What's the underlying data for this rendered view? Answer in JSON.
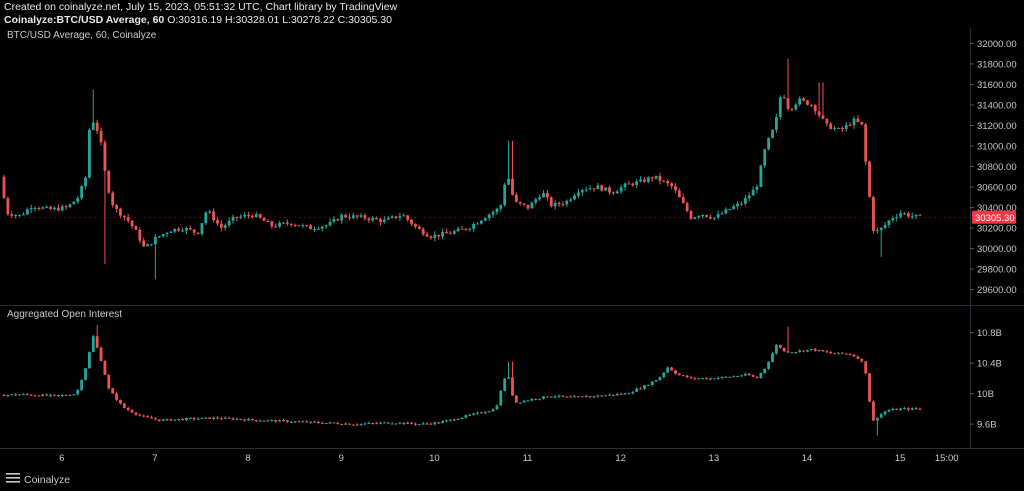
{
  "header": {
    "line1": "Created on coinalyze.net, July 15, 2023, 05:51:32 UTC, Chart library by TradingView",
    "symbol": "Coinalyze:BTC/USD Average, 60",
    "ohlc": " O:30316.19 H:30328.01 L:30278.22 C:30305.30"
  },
  "brand": {
    "name": "Coinalyze",
    "icon": "menu-lines-icon"
  },
  "colors": {
    "up": "#26a69a",
    "down": "#ef5350",
    "background": "#000000",
    "label_bg": "#f23645",
    "axis_text": "#c8c8c8",
    "separator": "#2a2e39"
  },
  "chart_data": [
    {
      "type": "candlestick",
      "title": "BTC/USD Average, 60, Coinalyze",
      "ylim": [
        29450,
        32150
      ],
      "yticks": [
        "29600.00",
        "29800.00",
        "30000.00",
        "30200.00",
        "30400.00",
        "30600.00",
        "30800.00",
        "31000.00",
        "31200.00",
        "31400.00",
        "31600.00",
        "31800.00",
        "32000.00"
      ],
      "last_price_label": "30305.30",
      "last_price": 30305.3,
      "x_labels": [
        "6",
        "7",
        "8",
        "9",
        "10",
        "11",
        "12",
        "13",
        "14",
        "15",
        "15:00"
      ],
      "x_label_day_positions": [
        6,
        7,
        8,
        9,
        10,
        11,
        12,
        13,
        14,
        15,
        15.5
      ],
      "x_range": [
        5.38,
        15.75
      ],
      "anchors": [
        [
          5.38,
          30700
        ],
        [
          5.45,
          30350
        ],
        [
          5.6,
          30320
        ],
        [
          5.72,
          30420
        ],
        [
          5.9,
          30380
        ],
        [
          6.1,
          30400
        ],
        [
          6.22,
          30500
        ],
        [
          6.3,
          30700
        ],
        [
          6.35,
          31300
        ],
        [
          6.45,
          31100
        ],
        [
          6.52,
          30650
        ],
        [
          6.6,
          30400
        ],
        [
          6.75,
          30280
        ],
        [
          6.85,
          30150
        ],
        [
          6.93,
          30000
        ],
        [
          7.05,
          30100
        ],
        [
          7.2,
          30180
        ],
        [
          7.35,
          30200
        ],
        [
          7.5,
          30150
        ],
        [
          7.6,
          30380
        ],
        [
          7.75,
          30200
        ],
        [
          7.9,
          30300
        ],
        [
          8.1,
          30330
        ],
        [
          8.3,
          30220
        ],
        [
          8.5,
          30250
        ],
        [
          8.7,
          30200
        ],
        [
          8.9,
          30230
        ],
        [
          9.05,
          30320
        ],
        [
          9.3,
          30300
        ],
        [
          9.5,
          30270
        ],
        [
          9.7,
          30330
        ],
        [
          9.85,
          30200
        ],
        [
          10.0,
          30120
        ],
        [
          10.2,
          30150
        ],
        [
          10.4,
          30200
        ],
        [
          10.6,
          30320
        ],
        [
          10.75,
          30400
        ],
        [
          10.82,
          30750
        ],
        [
          10.9,
          30450
        ],
        [
          11.05,
          30400
        ],
        [
          11.2,
          30550
        ],
        [
          11.3,
          30420
        ],
        [
          11.45,
          30450
        ],
        [
          11.6,
          30580
        ],
        [
          11.8,
          30600
        ],
        [
          11.95,
          30550
        ],
        [
          12.1,
          30620
        ],
        [
          12.25,
          30650
        ],
        [
          12.4,
          30700
        ],
        [
          12.5,
          30650
        ],
        [
          12.6,
          30600
        ],
        [
          12.7,
          30450
        ],
        [
          12.8,
          30300
        ],
        [
          12.9,
          30340
        ],
        [
          13.05,
          30300
        ],
        [
          13.2,
          30380
        ],
        [
          13.35,
          30450
        ],
        [
          13.5,
          30600
        ],
        [
          13.6,
          31000
        ],
        [
          13.7,
          31200
        ],
        [
          13.77,
          31550
        ],
        [
          13.85,
          31350
        ],
        [
          13.95,
          31450
        ],
        [
          14.1,
          31400
        ],
        [
          14.25,
          31200
        ],
        [
          14.4,
          31150
        ],
        [
          14.55,
          31250
        ],
        [
          14.63,
          31200
        ],
        [
          14.7,
          30600
        ],
        [
          14.76,
          30150
        ],
        [
          14.85,
          30200
        ],
        [
          14.95,
          30300
        ],
        [
          15.05,
          30350
        ],
        [
          15.15,
          30320
        ],
        [
          15.25,
          30305
        ]
      ],
      "spikes": [
        [
          6.35,
          31550,
          "high"
        ],
        [
          6.45,
          29850,
          "low"
        ],
        [
          7.0,
          29700,
          "low"
        ],
        [
          10.82,
          31050,
          "high"
        ],
        [
          13.78,
          31850,
          "high"
        ],
        [
          14.8,
          29920,
          "low"
        ],
        [
          14.15,
          31620,
          "high"
        ]
      ]
    },
    {
      "type": "candlestick",
      "title": "Aggregated Open Interest",
      "ylim": [
        9.3,
        11.15
      ],
      "yticks": [
        "9.6B",
        "10B",
        "10.4B",
        "10.8B"
      ],
      "ytick_values": [
        9.6,
        10.0,
        10.4,
        10.8
      ],
      "x_range": [
        5.38,
        15.75
      ],
      "anchors": [
        [
          5.38,
          9.98
        ],
        [
          5.6,
          9.99
        ],
        [
          5.8,
          9.98
        ],
        [
          6.0,
          9.97
        ],
        [
          6.2,
          10.0
        ],
        [
          6.3,
          10.35
        ],
        [
          6.38,
          10.75
        ],
        [
          6.45,
          10.5
        ],
        [
          6.55,
          10.05
        ],
        [
          6.7,
          9.82
        ],
        [
          6.9,
          9.7
        ],
        [
          7.1,
          9.65
        ],
        [
          7.4,
          9.67
        ],
        [
          7.7,
          9.68
        ],
        [
          8.0,
          9.66
        ],
        [
          8.4,
          9.64
        ],
        [
          8.8,
          9.62
        ],
        [
          9.2,
          9.6
        ],
        [
          9.6,
          9.62
        ],
        [
          9.9,
          9.6
        ],
        [
          10.1,
          9.62
        ],
        [
          10.3,
          9.68
        ],
        [
          10.5,
          9.74
        ],
        [
          10.7,
          9.8
        ],
        [
          10.82,
          10.3
        ],
        [
          10.9,
          9.88
        ],
        [
          11.1,
          9.93
        ],
        [
          11.3,
          9.97
        ],
        [
          11.5,
          9.95
        ],
        [
          11.8,
          9.97
        ],
        [
          12.1,
          10.0
        ],
        [
          12.3,
          10.1
        ],
        [
          12.45,
          10.2
        ],
        [
          12.55,
          10.35
        ],
        [
          12.65,
          10.25
        ],
        [
          12.8,
          10.2
        ],
        [
          13.0,
          10.2
        ],
        [
          13.2,
          10.22
        ],
        [
          13.4,
          10.25
        ],
        [
          13.5,
          10.2
        ],
        [
          13.6,
          10.35
        ],
        [
          13.72,
          10.65
        ],
        [
          13.8,
          10.55
        ],
        [
          13.9,
          10.55
        ],
        [
          14.1,
          10.58
        ],
        [
          14.3,
          10.53
        ],
        [
          14.5,
          10.52
        ],
        [
          14.62,
          10.45
        ],
        [
          14.68,
          10.25
        ],
        [
          14.74,
          9.62
        ],
        [
          14.8,
          9.7
        ],
        [
          14.9,
          9.78
        ],
        [
          15.05,
          9.8
        ],
        [
          15.25,
          9.8
        ]
      ],
      "spikes": [
        [
          6.38,
          10.9,
          "high"
        ],
        [
          10.82,
          10.42,
          "high"
        ],
        [
          13.78,
          10.88,
          "high"
        ],
        [
          14.76,
          9.45,
          "low"
        ]
      ]
    }
  ]
}
